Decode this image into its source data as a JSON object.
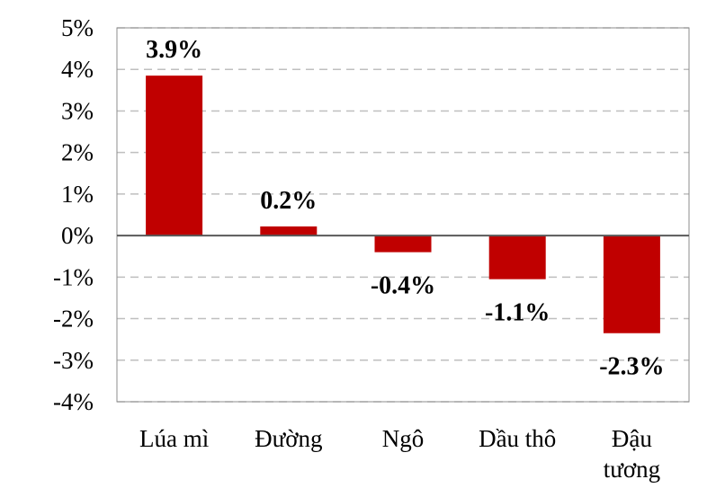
{
  "chart_data": {
    "type": "bar",
    "categories": [
      [
        "Lúa mì"
      ],
      [
        "Đường"
      ],
      [
        "Ngô"
      ],
      [
        "Dầu thô"
      ],
      [
        "Đậu",
        "tương"
      ]
    ],
    "values": [
      3.85,
      0.22,
      -0.4,
      -1.05,
      -2.35
    ],
    "data_labels": [
      "3.9%",
      "0.2%",
      "-0.4%",
      "-1.1%",
      "-2.3%"
    ],
    "ylim": [
      -4,
      5
    ],
    "yticks": [
      5,
      4,
      3,
      2,
      1,
      0,
      -1,
      -2,
      -3,
      -4
    ],
    "ytick_labels": [
      "5%",
      "4%",
      "3%",
      "2%",
      "1%",
      "0%",
      "-1%",
      "-2%",
      "-3%",
      "-4%"
    ],
    "grid": true,
    "title": "",
    "xlabel": "",
    "ylabel": "",
    "colors": {
      "bar": "#c00000",
      "grid": "#bfbfbf",
      "frame": "#8c8c8c",
      "zero_line": "#595959"
    }
  }
}
